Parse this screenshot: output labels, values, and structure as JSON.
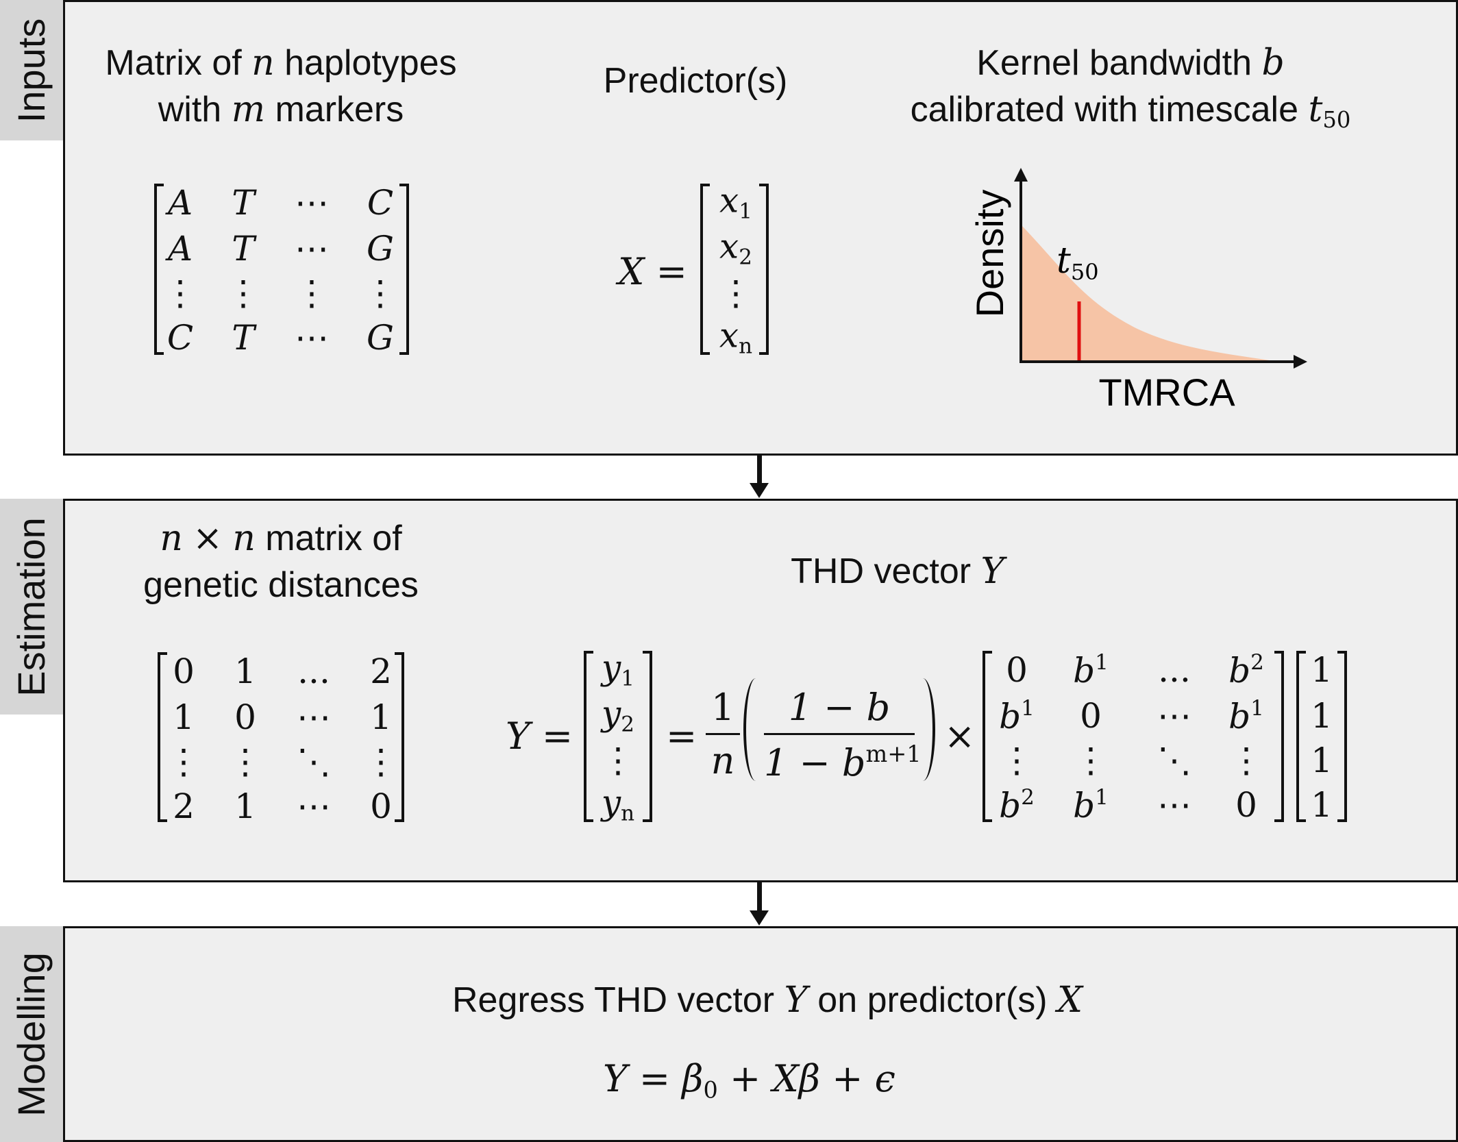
{
  "sections": {
    "inputs": "Inputs",
    "estimation": "Estimation",
    "modelling": "Modelling"
  },
  "inputs": {
    "haplotypes_line1_pre": "Matrix of",
    "haplotypes_line1_var": "n",
    "haplotypes_line1_post": "haplotypes",
    "haplotypes_line2_pre": "with",
    "haplotypes_line2_var": "m",
    "haplotypes_line2_post": "markers",
    "haplotype_matrix": [
      [
        "A",
        "T",
        "⋯",
        "C"
      ],
      [
        "A",
        "T",
        "⋯",
        "G"
      ],
      [
        "⋮",
        "⋮",
        "⋮",
        "⋮"
      ],
      [
        "C",
        "T",
        "⋯",
        "G"
      ]
    ],
    "predictor_heading": "Predictor(s)",
    "predictor_lhs": "X =",
    "predictor_vector": [
      [
        "x",
        "1"
      ],
      [
        "x",
        "2"
      ],
      [
        "⋮",
        ""
      ],
      [
        "x",
        "n"
      ]
    ],
    "kernel_line1_pre": "Kernel bandwidth",
    "kernel_line1_var": "b",
    "kernel_line2_pre": "calibrated with timescale",
    "kernel_line2_var": "t",
    "kernel_line2_sub": "50",
    "plot_ylabel": "Density",
    "plot_xlabel": "TMRCA",
    "plot_marker_var": "t",
    "plot_marker_sub": "50"
  },
  "estimation": {
    "distance_line1_v1": "n",
    "distance_line1_times": "×",
    "distance_line1_v2": "n",
    "distance_line1_post": "matrix of",
    "distance_line2": "genetic distances",
    "distance_matrix": [
      [
        "0",
        "1",
        "...",
        "2"
      ],
      [
        "1",
        "0",
        "⋯",
        "1"
      ],
      [
        "⋮",
        "⋮",
        "⋱",
        "⋮"
      ],
      [
        "2",
        "1",
        "⋯",
        "0"
      ]
    ],
    "thd_heading_pre": "THD vector",
    "thd_heading_var": "Y",
    "eq_lhs": "Y =",
    "y_vector": [
      [
        "y",
        "1"
      ],
      [
        "y",
        "2"
      ],
      [
        "⋮",
        ""
      ],
      [
        "y",
        "n"
      ]
    ],
    "eq_equals": "=",
    "frac_num": "1",
    "frac_den": "n",
    "paren_num": "1 − b",
    "paren_den_base": "1 − b",
    "paren_den_exp": "m+1",
    "times": "×",
    "b_matrix": [
      [
        "0",
        "b",
        "1",
        "...",
        "b",
        "2"
      ],
      [
        "b",
        "1",
        "0",
        "⋯",
        "b",
        "1"
      ],
      [
        "⋮",
        "",
        "⋮",
        "⋱",
        "⋮",
        ""
      ],
      [
        "b",
        "2",
        "b",
        "1",
        "⋯",
        "0"
      ]
    ],
    "ones_vector": [
      "1",
      "1",
      "1",
      "1"
    ]
  },
  "modelling": {
    "regress_pre": "Regress THD vector",
    "regress_var1": "Y",
    "regress_mid": "on predictor(s)",
    "regress_var2": "X",
    "model_Y": "Y",
    "model_eq": "=",
    "model_beta0": "β",
    "model_beta0_sub": "0",
    "model_plus1": "+",
    "model_X": "Xβ",
    "model_plus2": "+",
    "model_eps": "ϵ"
  },
  "colors": {
    "panel_bg": "#efefef",
    "tab_bg": "#d6d6d6",
    "density_fill": "#f6c4a6",
    "marker_line": "#e01010"
  }
}
